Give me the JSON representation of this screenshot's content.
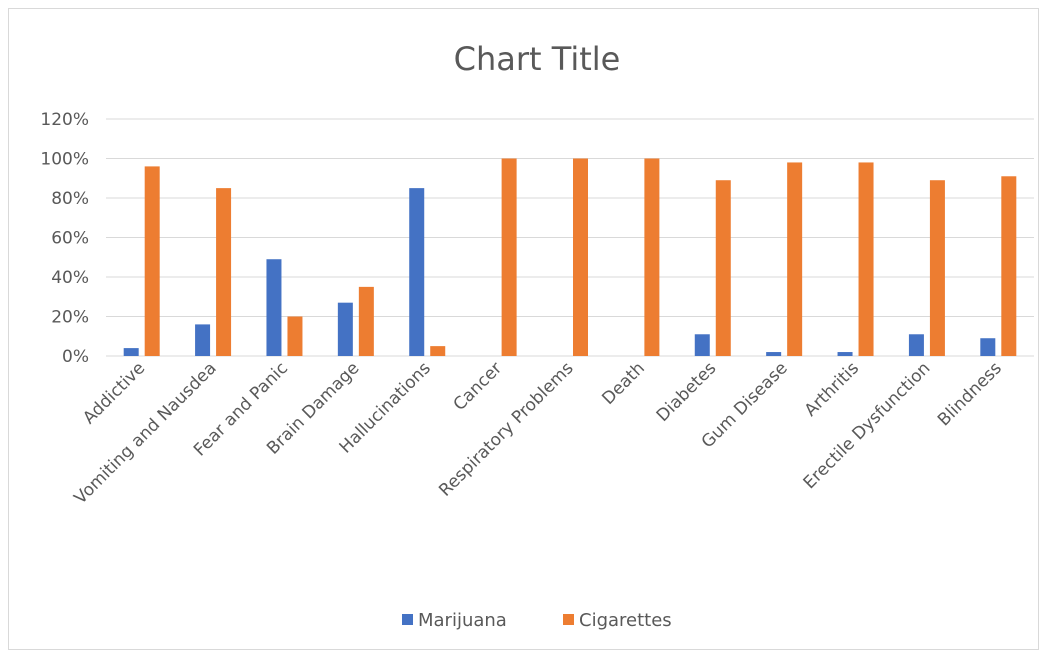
{
  "chart_data": {
    "type": "bar",
    "title": "Chart Title",
    "xlabel": "",
    "ylabel": "",
    "ylim": [
      0,
      1.2
    ],
    "y_ticks": [
      "0%",
      "20%",
      "40%",
      "60%",
      "80%",
      "100%",
      "120%"
    ],
    "grid": true,
    "legend_position": "bottom",
    "categories": [
      "Addictive",
      "Vomiting and Nausdea",
      "Fear and Panic",
      "Brain Damage",
      "Hallucinations",
      "Cancer",
      "Respiratory Problems",
      "Death",
      "Diabetes",
      "Gum Disease",
      "Arthritis",
      "Erectile Dysfunction",
      "Blindness"
    ],
    "series": [
      {
        "name": "Marijuana",
        "color": "#4472c4",
        "values": [
          0.04,
          0.16,
          0.49,
          0.27,
          0.85,
          0.0,
          0.0,
          0.0,
          0.11,
          0.02,
          0.02,
          0.11,
          0.09
        ]
      },
      {
        "name": "Cigarettes",
        "color": "#ed7d31",
        "values": [
          0.96,
          0.85,
          0.2,
          0.35,
          0.05,
          1.0,
          1.0,
          1.0,
          0.89,
          0.98,
          0.98,
          0.89,
          0.91
        ]
      }
    ]
  }
}
